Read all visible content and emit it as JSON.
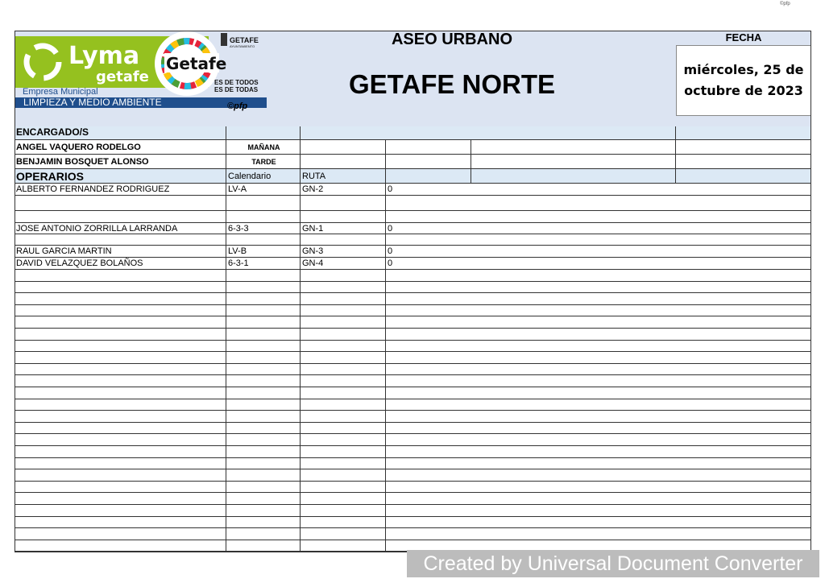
{
  "corner_mark": "©pfp",
  "logo": {
    "brand": "Lyma getafe",
    "sub": "Empresa Municipal",
    "band": "LIMPIEZA Y MEDIO AMBIENTE",
    "getafe": "Getafe",
    "getafe_small": "GETAFE",
    "ayto": "AYUNTAMIENTO",
    "slogan1": "ES DE TODOS",
    "slogan2": "ES DE TODAS",
    "copyright": "©pfp"
  },
  "header": {
    "title": "ASEO URBANO",
    "subtitle": "GETAFE NORTE",
    "fecha_label": "FECHA",
    "fecha": "miércoles, 25 de octubre de 2023"
  },
  "encargados": {
    "label": "ENCARGADO/S",
    "rows": [
      {
        "name": "ANGEL VAQUERO RODELGO",
        "turno": "MAÑANA"
      },
      {
        "name": "BENJAMIN BOSQUET ALONSO",
        "turno": "TARDE"
      }
    ]
  },
  "operarios": {
    "label": "OPERARIOS",
    "col_calendario": "Calendario",
    "col_ruta": "RUTA",
    "rows": [
      {
        "name": "ALBERTO FERNANDEZ RODRIGUEZ",
        "cal": "LV-A",
        "ruta": "GN-2",
        "val": "0"
      },
      {
        "name": "",
        "cal": "",
        "ruta": "",
        "val": ""
      },
      {
        "name": "",
        "cal": "",
        "ruta": "",
        "val": ""
      },
      {
        "name": "JOSE ANTONIO ZORRILLA LARRANDA",
        "cal": "6-3-3",
        "ruta": "GN-1",
        "val": "0"
      },
      {
        "name": "",
        "cal": "",
        "ruta": "",
        "val": ""
      },
      {
        "name": "RAUL GARCIA MARTIN",
        "cal": "LV-B",
        "ruta": "GN-3",
        "val": "0"
      },
      {
        "name": "DAVID VELAZQUEZ BOLAÑOS",
        "cal": "6-3-1",
        "ruta": "GN-4",
        "val": "0"
      }
    ]
  },
  "watermark": "Created by Universal Document Converter"
}
